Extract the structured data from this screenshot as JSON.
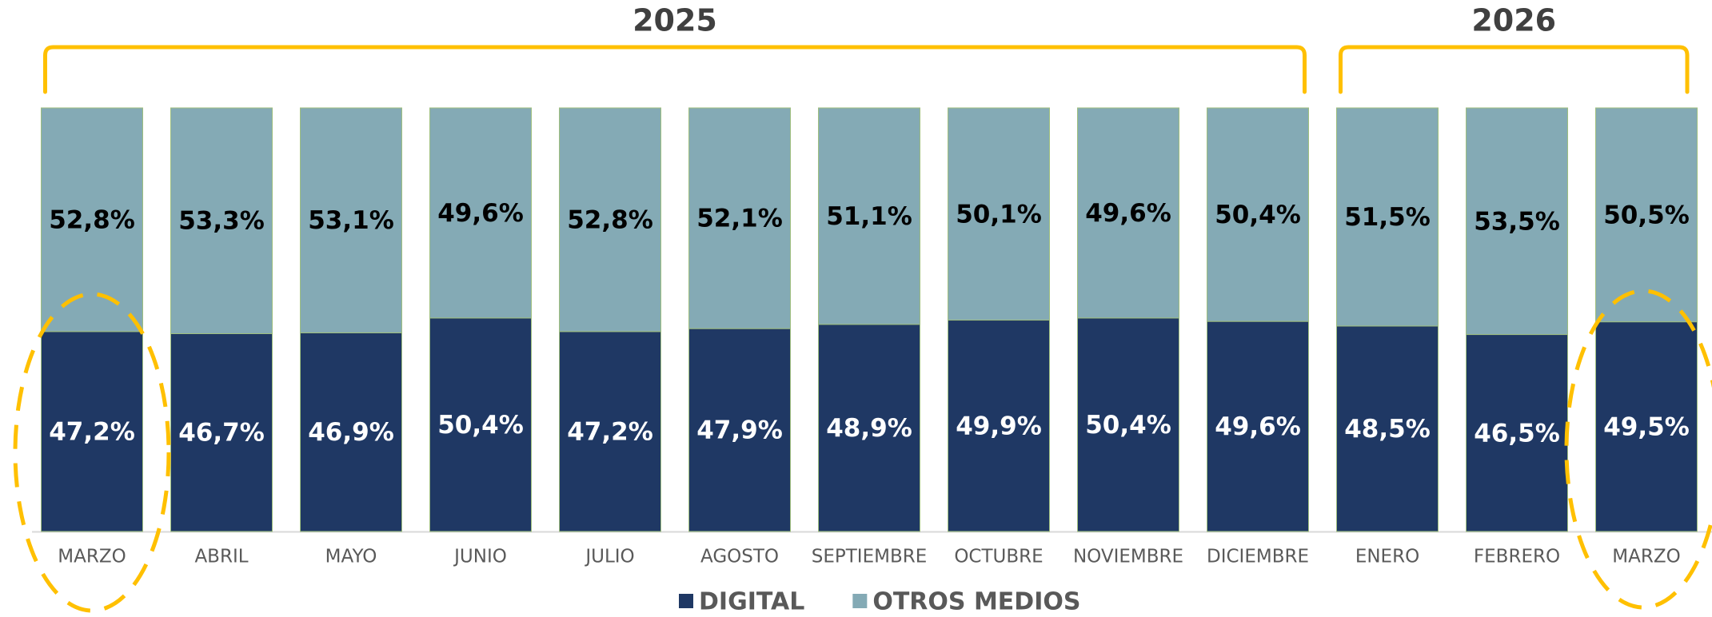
{
  "chart_data": {
    "type": "stacked_bar",
    "annotations": [
      "2025",
      "2026"
    ],
    "categories": [
      "MARZO",
      "ABRIL",
      "MAYO",
      "JUNIO",
      "JULIO",
      "AGOSTO",
      "SEPTIEMBRE",
      "OCTUBRE",
      "NOVIEMBRE",
      "DICIEMBRE",
      "ENERO",
      "FEBRERO",
      "MARZO"
    ],
    "series": [
      {
        "name": "DIGITAL",
        "color": "#1f3864",
        "values": [
          47.2,
          46.7,
          46.9,
          50.4,
          47.2,
          47.9,
          48.9,
          49.9,
          50.4,
          49.6,
          48.5,
          46.5,
          49.5
        ],
        "value_labels": [
          "47,2%",
          "46,7%",
          "46,9%",
          "50,4%",
          "47,2%",
          "47,9%",
          "48,9%",
          "49,9%",
          "50,4%",
          "49,6%",
          "48,5%",
          "46,5%",
          "49,5%"
        ]
      },
      {
        "name": "OTROS MEDIOS",
        "color": "#84aab5",
        "values": [
          52.8,
          53.3,
          53.1,
          49.6,
          52.8,
          52.1,
          51.1,
          50.1,
          49.6,
          50.4,
          51.5,
          53.5,
          50.5
        ],
        "value_labels": [
          "52,8%",
          "53,3%",
          "53,1%",
          "49,6%",
          "52,8%",
          "52,1%",
          "51,1%",
          "50,1%",
          "49,6%",
          "50,4%",
          "51,5%",
          "53,5%",
          "50,5%"
        ]
      }
    ],
    "ylim": [
      0,
      100
    ]
  }
}
